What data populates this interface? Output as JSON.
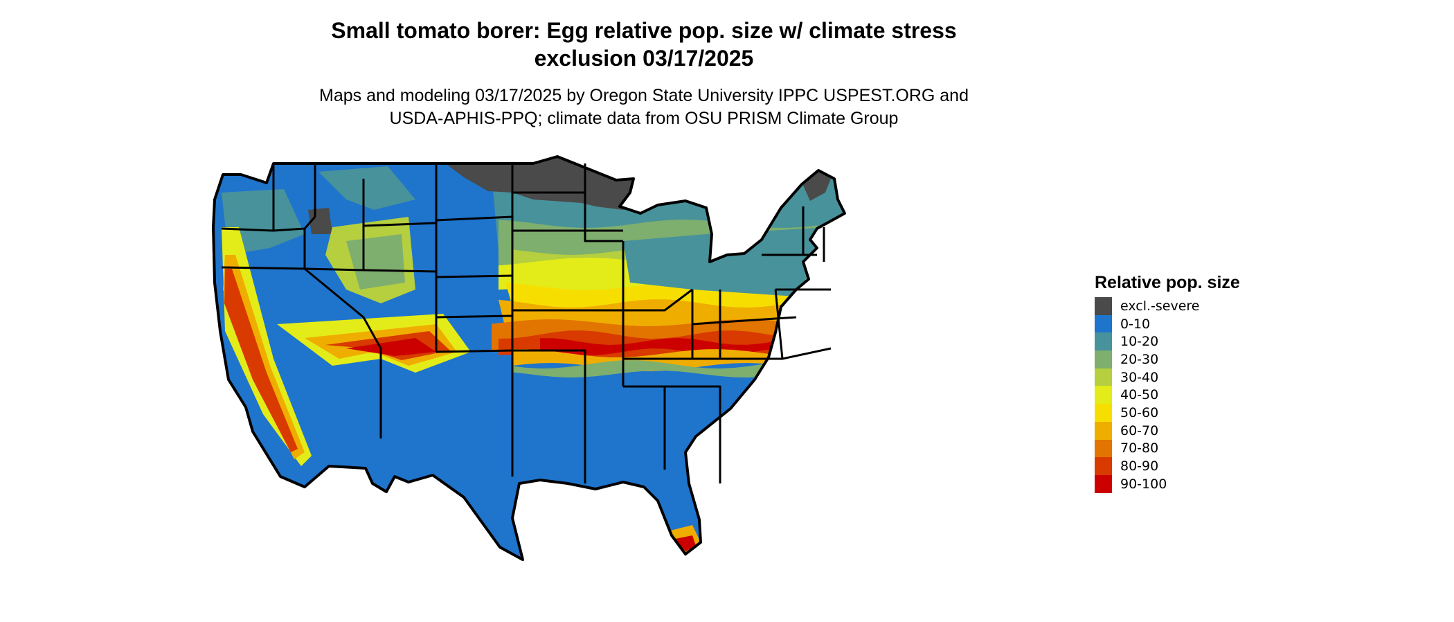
{
  "title": {
    "line1": "Small tomato borer: Egg relative pop. size w/ climate stress",
    "line2": "exclusion 03/17/2025"
  },
  "subtitle": {
    "line1": "Maps and modeling 03/17/2025 by Oregon State University IPPC USPEST.ORG and",
    "line2": "USDA-APHIS-PPQ; climate data from OSU PRISM Climate Group"
  },
  "legend": {
    "title": "Relative pop. size",
    "items": [
      {
        "label": "excl.-severe",
        "color": "#4a4a4a"
      },
      {
        "label": "0-10",
        "color": "#1f74cc"
      },
      {
        "label": "10-20",
        "color": "#48929b"
      },
      {
        "label": "20-30",
        "color": "#7faf6e"
      },
      {
        "label": "30-40",
        "color": "#b5cf3e"
      },
      {
        "label": "40-50",
        "color": "#e3ec18"
      },
      {
        "label": "50-60",
        "color": "#f6df00"
      },
      {
        "label": "60-70",
        "color": "#efad00"
      },
      {
        "label": "70-80",
        "color": "#e27400"
      },
      {
        "label": "80-90",
        "color": "#d83a00"
      },
      {
        "label": "90-100",
        "color": "#cd0000"
      }
    ]
  },
  "map": {
    "region": "contiguous United States",
    "ocean_color": "#ffffff",
    "border_color": "#000000"
  }
}
